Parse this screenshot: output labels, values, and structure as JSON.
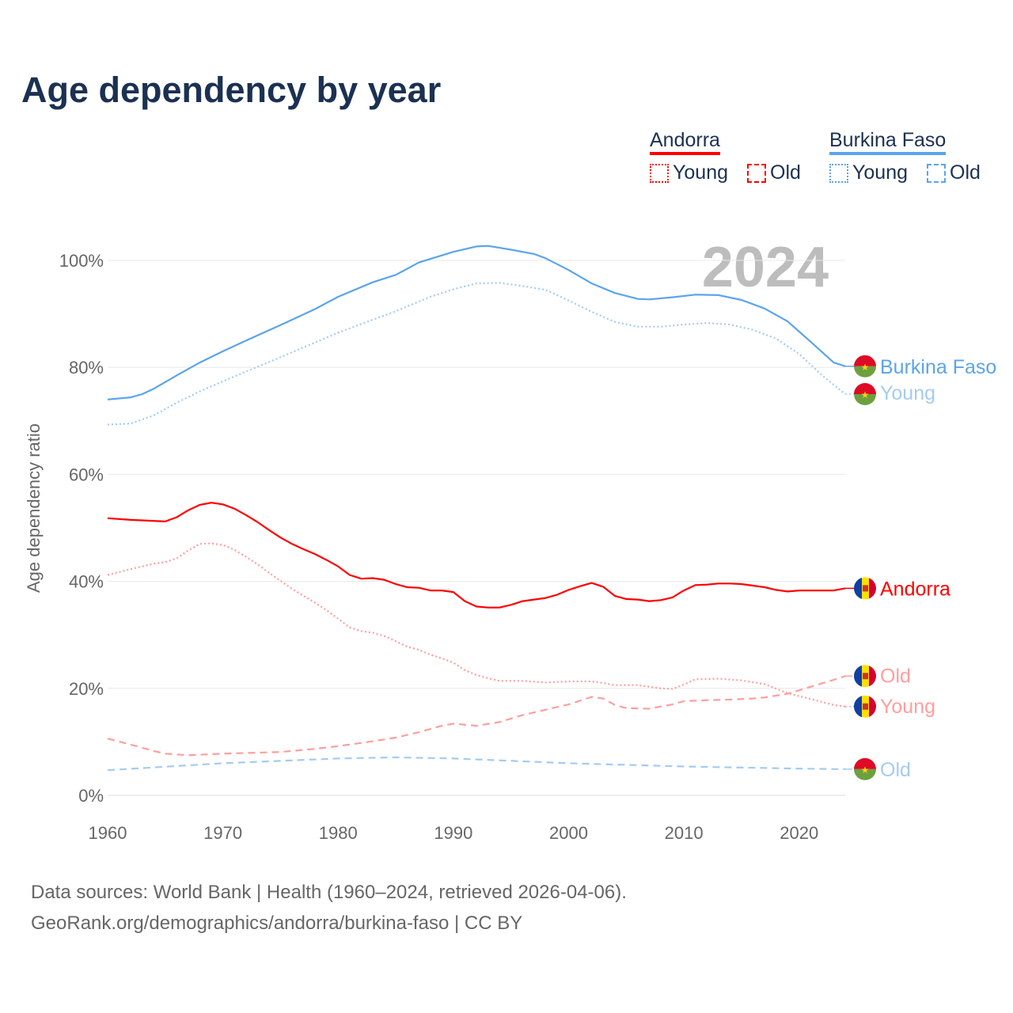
{
  "title": "Age dependency by year",
  "legend": {
    "groups": [
      {
        "name": "Andorra",
        "color": "#ff0000",
        "items": [
          {
            "label": "Young",
            "style": "dotted"
          },
          {
            "label": "Old",
            "style": "dashed"
          }
        ]
      },
      {
        "name": "Burkina Faso",
        "color": "#5ba4ec",
        "items": [
          {
            "label": "Young",
            "style": "dotted"
          },
          {
            "label": "Old",
            "style": "dashed"
          }
        ]
      }
    ]
  },
  "year_watermark": "2024",
  "footer": {
    "line1": "Data sources: World Bank | Health (1960–2024, retrieved 2026-04-06).",
    "line2": "GeoRank.org/demographics/andorra/burkina-faso | CC BY"
  },
  "chart_data": {
    "type": "line",
    "title": "Age dependency by year",
    "xlabel": "",
    "ylabel": "Age dependency ratio",
    "xlim": [
      1960,
      2024
    ],
    "ylim": [
      0,
      100
    ],
    "x_ticks": [
      "1960",
      "1970",
      "1980",
      "1990",
      "2000",
      "2010",
      "2020"
    ],
    "y_ticks": [
      "0%",
      "20%",
      "40%",
      "60%",
      "80%",
      "100%"
    ],
    "grid": true,
    "series": [
      {
        "name": "Burkina Faso",
        "end_label": "Burkina Faso",
        "country": "burkina",
        "color": "#5ba4ec",
        "style": "solid",
        "x": [
          1960,
          1962,
          1963,
          1964,
          1966,
          1968,
          1970,
          1972,
          1975,
          1978,
          1980,
          1983,
          1985,
          1987,
          1990,
          1992,
          1993,
          1995,
          1997,
          1998,
          2000,
          2002,
          2004,
          2006,
          2007,
          2009,
          2011,
          2013,
          2015,
          2017,
          2019,
          2021,
          2023,
          2024
        ],
        "y": [
          74.0,
          74.4,
          75.0,
          76.0,
          78.5,
          80.9,
          83.0,
          85.0,
          87.9,
          90.9,
          93.2,
          95.9,
          97.3,
          99.6,
          101.6,
          102.6,
          102.7,
          102.0,
          101.2,
          100.4,
          98.2,
          95.7,
          93.9,
          92.8,
          92.7,
          93.1,
          93.6,
          93.5,
          92.6,
          91.0,
          88.6,
          84.8,
          80.9,
          80.2
        ]
      },
      {
        "name": "Burkina Faso Young",
        "end_label": "Young",
        "country": "burkina",
        "color": "#a4cbf2",
        "style": "dotted",
        "x": [
          1960,
          1962,
          1964,
          1966,
          1968,
          1970,
          1972,
          1975,
          1980,
          1985,
          1988,
          1990,
          1992,
          1994,
          1996,
          1998,
          2000,
          2002,
          2004,
          2006,
          2008,
          2010,
          2012,
          2014,
          2016,
          2018,
          2020,
          2022,
          2024
        ],
        "y": [
          69.3,
          69.5,
          71.0,
          73.4,
          75.5,
          77.4,
          79.2,
          81.9,
          86.5,
          90.5,
          93.2,
          94.6,
          95.7,
          95.8,
          95.2,
          94.5,
          92.5,
          90.4,
          88.5,
          87.6,
          87.6,
          88.0,
          88.3,
          88.0,
          87.0,
          85.4,
          82.5,
          78.5,
          75.0
        ]
      },
      {
        "name": "Burkina Faso Old",
        "end_label": "Old",
        "country": "burkina",
        "color": "#a4cbf2",
        "style": "dashed",
        "x": [
          1960,
          1970,
          1980,
          1985,
          1990,
          2000,
          2010,
          2020,
          2024
        ],
        "y": [
          4.7,
          6.0,
          6.9,
          7.1,
          6.9,
          6.0,
          5.4,
          5.0,
          4.9
        ]
      },
      {
        "name": "Andorra",
        "end_label": "Andorra",
        "country": "andorra",
        "color": "#ff0000",
        "style": "solid",
        "x": [
          1960,
          1962,
          1965,
          1966,
          1967,
          1968,
          1969,
          1970,
          1971,
          1972,
          1973,
          1974,
          1975,
          1976,
          1977,
          1978,
          1979,
          1980,
          1981,
          1982,
          1983,
          1984,
          1985,
          1986,
          1987,
          1988,
          1989,
          1990,
          1991,
          1992,
          1993,
          1994,
          1995,
          1996,
          1997,
          1998,
          1999,
          2000,
          2001,
          2002,
          2003,
          2004,
          2005,
          2006,
          2007,
          2008,
          2009,
          2010,
          2011,
          2012,
          2013,
          2014,
          2015,
          2016,
          2017,
          2018,
          2019,
          2020,
          2021,
          2022,
          2023,
          2024
        ],
        "y": [
          51.8,
          51.5,
          51.2,
          52.0,
          53.3,
          54.3,
          54.7,
          54.4,
          53.6,
          52.4,
          51.1,
          49.6,
          48.2,
          47.0,
          46.0,
          45.1,
          44.0,
          42.8,
          41.2,
          40.5,
          40.6,
          40.3,
          39.5,
          38.9,
          38.8,
          38.3,
          38.3,
          38.0,
          36.3,
          35.3,
          35.1,
          35.1,
          35.6,
          36.3,
          36.6,
          36.9,
          37.5,
          38.4,
          39.1,
          39.7,
          39.0,
          37.3,
          36.7,
          36.6,
          36.3,
          36.5,
          37.0,
          38.3,
          39.3,
          39.4,
          39.6,
          39.6,
          39.5,
          39.2,
          38.9,
          38.4,
          38.1,
          38.3,
          38.3,
          38.3,
          38.3,
          38.7
        ]
      },
      {
        "name": "Andorra Old",
        "end_label": "Old",
        "country": "andorra",
        "color": "#ff9e9e",
        "style": "dashed",
        "x": [
          1960,
          1962,
          1964,
          1965,
          1967,
          1970,
          1975,
          1978,
          1980,
          1983,
          1985,
          1987,
          1989,
          1990,
          1992,
          1994,
          1996,
          1998,
          2000,
          2002,
          2003,
          2004,
          2005,
          2007,
          2009,
          2010,
          2012,
          2014,
          2016,
          2017,
          2019,
          2021,
          2023,
          2024
        ],
        "y": [
          10.6,
          9.5,
          8.3,
          7.8,
          7.5,
          7.8,
          8.1,
          8.7,
          9.2,
          10.1,
          10.8,
          11.8,
          13.0,
          13.4,
          13.0,
          13.7,
          15.0,
          16.0,
          17.0,
          18.4,
          18.1,
          16.9,
          16.3,
          16.2,
          17.0,
          17.6,
          17.8,
          17.9,
          18.1,
          18.3,
          19.0,
          20.3,
          21.6,
          22.3
        ]
      },
      {
        "name": "Andorra Young",
        "end_label": "Young",
        "country": "andorra",
        "color": "#ff9e9e",
        "style": "dotted",
        "x": [
          1960,
          1962,
          1964,
          1965,
          1966,
          1967,
          1968,
          1969,
          1970,
          1971,
          1972,
          1973,
          1974,
          1975,
          1976,
          1977,
          1978,
          1979,
          1980,
          1981,
          1982,
          1983,
          1984,
          1985,
          1986,
          1987,
          1988,
          1989,
          1990,
          1991,
          1992,
          1993,
          1994,
          1996,
          1998,
          2000,
          2002,
          2003,
          2004,
          2006,
          2008,
          2009,
          2010,
          2011,
          2013,
          2015,
          2017,
          2019,
          2021,
          2023,
          2024
        ],
        "y": [
          41.2,
          42.3,
          43.3,
          43.6,
          44.3,
          45.8,
          47.0,
          47.1,
          46.8,
          45.9,
          44.6,
          43.2,
          41.6,
          40.1,
          38.6,
          37.3,
          36.0,
          34.6,
          33.0,
          31.4,
          30.7,
          30.4,
          29.8,
          28.8,
          27.8,
          27.2,
          26.3,
          25.6,
          24.8,
          23.4,
          22.5,
          21.9,
          21.4,
          21.4,
          21.1,
          21.3,
          21.3,
          21.0,
          20.6,
          20.6,
          20.0,
          19.9,
          20.7,
          21.7,
          21.8,
          21.5,
          20.8,
          19.1,
          18.0,
          16.9,
          16.6
        ]
      }
    ]
  }
}
